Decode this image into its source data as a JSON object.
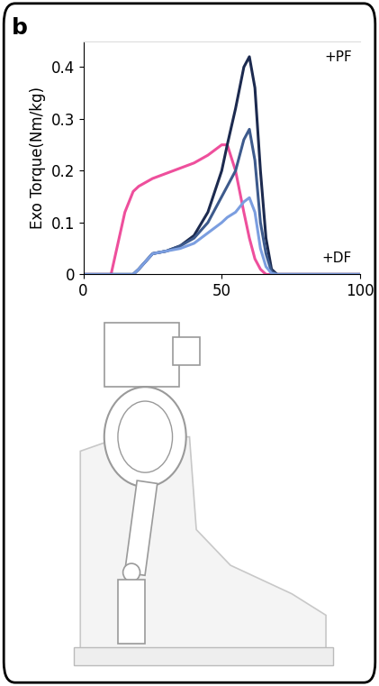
{
  "panel_label": "b",
  "chart_data": {
    "type": "line",
    "y_label": "Exo Torque(Nm/kg)",
    "annotations": [
      "+PF",
      "+DF"
    ],
    "x": [
      0,
      5,
      10,
      15,
      18,
      20,
      25,
      30,
      35,
      40,
      45,
      50,
      52,
      55,
      58,
      60,
      62,
      64,
      66,
      68,
      70,
      75,
      80,
      90,
      100
    ],
    "series": [
      {
        "color": "#ee4f9c",
        "values": [
          0,
          0,
          0,
          0.12,
          0.16,
          0.17,
          0.185,
          0.195,
          0.205,
          0.215,
          0.23,
          0.25,
          0.25,
          0.2,
          0.12,
          0.07,
          0.03,
          0.01,
          0,
          0,
          0,
          0,
          0,
          0,
          0
        ]
      },
      {
        "color": "#1c2a4f",
        "values": [
          0,
          0,
          0,
          0,
          0,
          0.01,
          0.04,
          0.045,
          0.055,
          0.075,
          0.12,
          0.2,
          0.25,
          0.32,
          0.4,
          0.42,
          0.36,
          0.2,
          0.07,
          0.01,
          0,
          0,
          0,
          0,
          0
        ]
      },
      {
        "color": "#3d5a8c",
        "values": [
          0,
          0,
          0,
          0,
          0,
          0.01,
          0.04,
          0.045,
          0.055,
          0.07,
          0.1,
          0.15,
          0.17,
          0.2,
          0.26,
          0.28,
          0.22,
          0.1,
          0.04,
          0.005,
          0,
          0,
          0,
          0,
          0
        ]
      },
      {
        "color": "#7b9ee0",
        "values": [
          0,
          0,
          0,
          0,
          0,
          0.01,
          0.04,
          0.045,
          0.05,
          0.06,
          0.08,
          0.1,
          0.11,
          0.12,
          0.14,
          0.148,
          0.12,
          0.05,
          0.015,
          0.002,
          0,
          0,
          0,
          0,
          0
        ]
      }
    ],
    "xlim": [
      0,
      100
    ],
    "xticks": [
      0,
      50,
      100
    ],
    "ylim": [
      0,
      0.45
    ],
    "yticks": [
      0,
      0.1,
      0.2,
      0.3,
      0.4
    ],
    "grid": false
  }
}
